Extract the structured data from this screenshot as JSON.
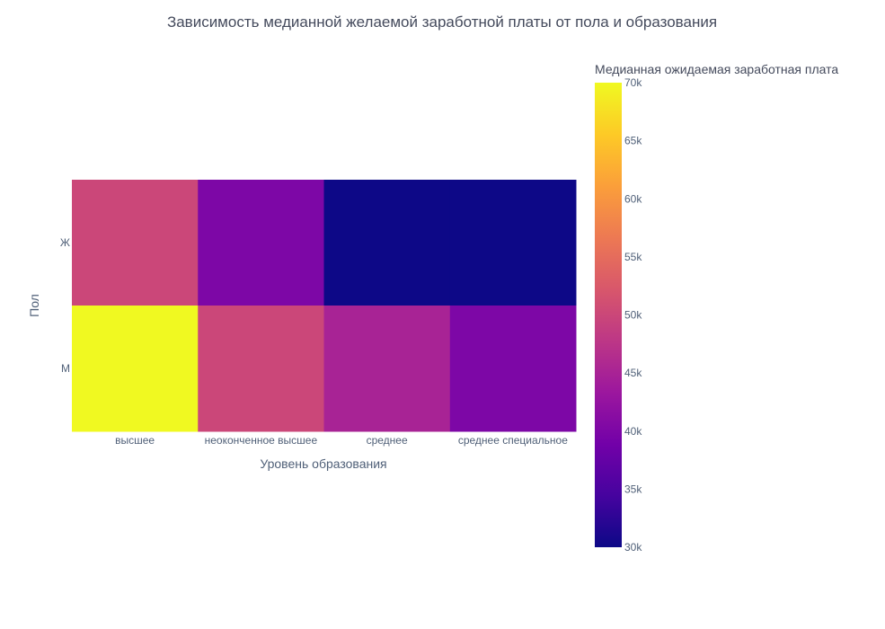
{
  "chart_data": {
    "type": "heatmap",
    "title": "Зависимость медианной желаемой заработной платы от пола и образования",
    "xlabel": "Уровень образования",
    "ylabel": "Пол",
    "x": [
      "высшее",
      "неоконченное высшее",
      "среднее",
      "среднее специальное"
    ],
    "y": [
      "Ж",
      "М"
    ],
    "z": [
      [
        50000,
        40000,
        30000,
        30000
      ],
      [
        70000,
        50000,
        45000,
        40000
      ]
    ],
    "colorbar": {
      "title": "Медианная ожидаемая заработная плата",
      "range": [
        30000,
        70000
      ],
      "tick_values": [
        30000,
        35000,
        40000,
        45000,
        50000,
        55000,
        60000,
        65000,
        70000
      ],
      "tick_labels": [
        "30k",
        "35k",
        "40k",
        "45k",
        "50k",
        "55k",
        "60k",
        "65k",
        "70k"
      ],
      "colorscale": [
        "#0d0887",
        "#46039f",
        "#7201a8",
        "#9c179e",
        "#bd3786",
        "#d8576b",
        "#ed7953",
        "#fb9f3a",
        "#fdca26",
        "#f0f921"
      ]
    }
  }
}
